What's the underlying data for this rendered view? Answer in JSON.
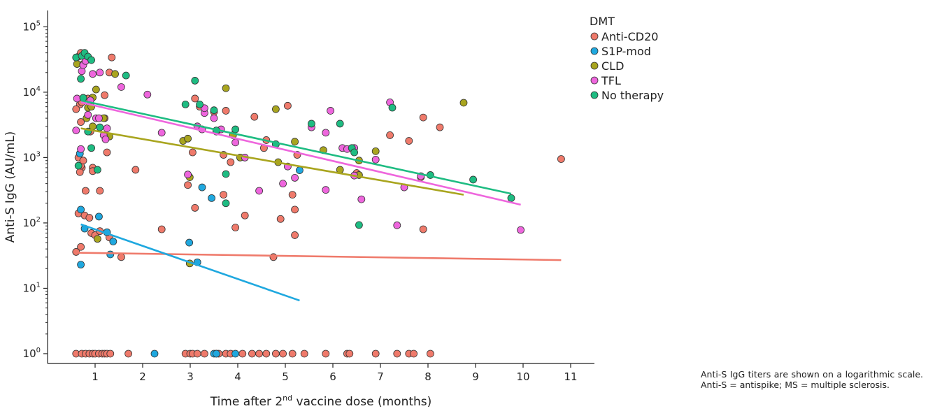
{
  "caption": "Anti-S IgG titers are shown on a logarithmic scale. Anti-S = antispike; MS = multiple sclerosis.",
  "chart_data": {
    "type": "scatter",
    "xlabel_pre": "Time after 2",
    "xlabel_sup": "nd",
    "xlabel_post": " vaccine dose (months)",
    "ylabel": "Anti-S IgG (AU/mL)",
    "y_scale": "log10",
    "xlim": [
      0.0,
      11.5
    ],
    "ylim_exp": [
      -0.15,
      5.25
    ],
    "x_ticks": [
      1,
      2,
      3,
      4,
      5,
      6,
      7,
      8,
      9,
      10,
      11
    ],
    "y_ticks": [
      {
        "exp": 0,
        "base": "10",
        "sup": "0"
      },
      {
        "exp": 1,
        "base": "10",
        "sup": "1"
      },
      {
        "exp": 2,
        "base": "10",
        "sup": "2"
      },
      {
        "exp": 3,
        "base": "10",
        "sup": "3"
      },
      {
        "exp": 4,
        "base": "10",
        "sup": "4"
      },
      {
        "exp": 5,
        "base": "10",
        "sup": "5"
      }
    ],
    "legend": {
      "title": "DMT",
      "placement": "top-right"
    },
    "series": [
      {
        "name": "Anti-CD20",
        "color": "#ef7a6b",
        "fit": {
          "x": [
            0.65,
            10.8
          ],
          "y": [
            35,
            27
          ]
        },
        "points": [
          [
            0.65,
            35000
          ],
          [
            0.7,
            40000
          ],
          [
            0.68,
            6500
          ],
          [
            0.72,
            7000
          ],
          [
            0.6,
            5500
          ],
          [
            0.7,
            3500
          ],
          [
            0.65,
            1000
          ],
          [
            0.72,
            700
          ],
          [
            0.68,
            600
          ],
          [
            0.7,
            750
          ],
          [
            0.75,
            900
          ],
          [
            0.85,
            8000
          ],
          [
            0.9,
            2500
          ],
          [
            0.95,
            700
          ],
          [
            0.95,
            620
          ],
          [
            0.8,
            310
          ],
          [
            1.1,
            310
          ],
          [
            1.2,
            9000
          ],
          [
            1.2,
            4000
          ],
          [
            1.3,
            20000
          ],
          [
            1.35,
            34000
          ],
          [
            1.25,
            1200
          ],
          [
            0.65,
            140
          ],
          [
            0.78,
            130
          ],
          [
            0.88,
            120
          ],
          [
            0.92,
            70
          ],
          [
            1.0,
            65
          ],
          [
            1.1,
            75
          ],
          [
            0.7,
            43
          ],
          [
            0.6,
            36
          ],
          [
            1.3,
            60
          ],
          [
            1.55,
            30
          ],
          [
            1.85,
            650
          ],
          [
            2.4,
            80
          ],
          [
            2.95,
            380
          ],
          [
            3.05,
            1200
          ],
          [
            3.1,
            170
          ],
          [
            3.1,
            8000
          ],
          [
            3.2,
            6000
          ],
          [
            3.5,
            5000
          ],
          [
            3.7,
            270
          ],
          [
            3.7,
            1100
          ],
          [
            3.75,
            5200
          ],
          [
            3.85,
            850
          ],
          [
            3.95,
            85
          ],
          [
            4.15,
            130
          ],
          [
            4.35,
            4200
          ],
          [
            4.55,
            1400
          ],
          [
            4.6,
            1850
          ],
          [
            4.75,
            30
          ],
          [
            4.9,
            115
          ],
          [
            5.05,
            6200
          ],
          [
            5.15,
            270
          ],
          [
            5.2,
            160
          ],
          [
            5.25,
            1100
          ],
          [
            5.2,
            65
          ],
          [
            6.5,
            580
          ],
          [
            7.2,
            2200
          ],
          [
            7.6,
            1800
          ],
          [
            7.85,
            500
          ],
          [
            7.9,
            4100
          ],
          [
            7.9,
            80
          ],
          [
            8.25,
            2900
          ],
          [
            10.8,
            950
          ],
          [
            0.6,
            1
          ],
          [
            0.72,
            1
          ],
          [
            0.8,
            1
          ],
          [
            0.88,
            1
          ],
          [
            0.95,
            1
          ],
          [
            1.0,
            1
          ],
          [
            1.08,
            1
          ],
          [
            1.15,
            1
          ],
          [
            1.2,
            1
          ],
          [
            1.25,
            1
          ],
          [
            1.32,
            1
          ],
          [
            1.7,
            1
          ],
          [
            2.9,
            1
          ],
          [
            3.0,
            1
          ],
          [
            3.05,
            1
          ],
          [
            3.15,
            1
          ],
          [
            3.3,
            1
          ],
          [
            3.55,
            1
          ],
          [
            3.6,
            1
          ],
          [
            3.75,
            1
          ],
          [
            3.85,
            1
          ],
          [
            4.1,
            1
          ],
          [
            4.3,
            1
          ],
          [
            4.45,
            1
          ],
          [
            4.6,
            1
          ],
          [
            4.8,
            1
          ],
          [
            4.95,
            1
          ],
          [
            5.15,
            1
          ],
          [
            5.4,
            1
          ],
          [
            5.85,
            1
          ],
          [
            6.3,
            1
          ],
          [
            6.35,
            1
          ],
          [
            6.9,
            1
          ],
          [
            7.35,
            1
          ],
          [
            7.6,
            1
          ],
          [
            7.7,
            1
          ],
          [
            8.05,
            1
          ]
        ]
      },
      {
        "name": "S1P-mod",
        "color": "#1fa8df",
        "fit": {
          "x": [
            0.7,
            5.3
          ],
          "y": [
            95,
            6.5
          ]
        },
        "points": [
          [
            0.68,
            1150
          ],
          [
            0.7,
            160
          ],
          [
            0.78,
            82
          ],
          [
            1.08,
            125
          ],
          [
            1.25,
            72
          ],
          [
            1.32,
            33
          ],
          [
            1.38,
            52
          ],
          [
            0.7,
            23
          ],
          [
            2.98,
            50
          ],
          [
            3.15,
            25
          ],
          [
            3.25,
            350
          ],
          [
            3.45,
            240
          ],
          [
            5.3,
            640
          ],
          [
            2.25,
            1
          ],
          [
            3.5,
            1
          ],
          [
            3.55,
            1
          ],
          [
            3.95,
            1
          ]
        ]
      },
      {
        "name": "CLD",
        "color": "#a9a51f",
        "fit": {
          "x": [
            0.7,
            8.75
          ],
          "y": [
            2800,
            270
          ]
        },
        "points": [
          [
            0.62,
            27000
          ],
          [
            0.75,
            27000
          ],
          [
            0.85,
            5800
          ],
          [
            0.92,
            6000
          ],
          [
            0.95,
            8300
          ],
          [
            1.02,
            11000
          ],
          [
            0.82,
            4000
          ],
          [
            1.18,
            4000
          ],
          [
            1.3,
            2100
          ],
          [
            1.42,
            19000
          ],
          [
            2.85,
            1800
          ],
          [
            2.95,
            1950
          ],
          [
            2.99,
            500
          ],
          [
            3.75,
            11500
          ],
          [
            3.9,
            2200
          ],
          [
            4.05,
            1000
          ],
          [
            4.8,
            5500
          ],
          [
            4.85,
            850
          ],
          [
            5.2,
            1750
          ],
          [
            5.8,
            1300
          ],
          [
            6.15,
            650
          ],
          [
            6.55,
            540
          ],
          [
            6.55,
            900
          ],
          [
            6.9,
            1250
          ],
          [
            8.75,
            6900
          ],
          [
            0.95,
            3000
          ],
          [
            1.05,
            57
          ],
          [
            2.99,
            24
          ]
        ]
      },
      {
        "name": "TFL",
        "color": "#ee66dd",
        "fit": {
          "x": [
            0.7,
            9.95
          ],
          "y": [
            7000,
            190
          ]
        },
        "points": [
          [
            0.6,
            2600
          ],
          [
            0.62,
            8000
          ],
          [
            0.7,
            1350
          ],
          [
            0.72,
            21000
          ],
          [
            0.75,
            26000
          ],
          [
            0.8,
            30000
          ],
          [
            0.85,
            4500
          ],
          [
            0.9,
            7500
          ],
          [
            0.95,
            19000
          ],
          [
            1.02,
            4000
          ],
          [
            1.08,
            4000
          ],
          [
            1.1,
            20000
          ],
          [
            1.18,
            2200
          ],
          [
            1.22,
            1900
          ],
          [
            1.25,
            2800
          ],
          [
            1.55,
            12000
          ],
          [
            2.1,
            9200
          ],
          [
            2.4,
            2400
          ],
          [
            2.95,
            550
          ],
          [
            3.15,
            3000
          ],
          [
            3.25,
            2700
          ],
          [
            3.3,
            4800
          ],
          [
            3.3,
            5700
          ],
          [
            3.5,
            4000
          ],
          [
            3.55,
            2500
          ],
          [
            3.65,
            2700
          ],
          [
            3.95,
            1700
          ],
          [
            4.15,
            1000
          ],
          [
            4.45,
            310
          ],
          [
            4.95,
            400
          ],
          [
            5.05,
            730
          ],
          [
            5.2,
            490
          ],
          [
            5.55,
            2900
          ],
          [
            5.85,
            320
          ],
          [
            5.85,
            2400
          ],
          [
            5.95,
            5200
          ],
          [
            6.2,
            1400
          ],
          [
            6.3,
            1350
          ],
          [
            6.45,
            530
          ],
          [
            6.45,
            1400
          ],
          [
            6.6,
            230
          ],
          [
            6.9,
            930
          ],
          [
            7.2,
            7000
          ],
          [
            7.35,
            92
          ],
          [
            7.5,
            350
          ],
          [
            7.85,
            520
          ],
          [
            9.95,
            78
          ]
        ]
      },
      {
        "name": "No therapy",
        "color": "#1ebc82",
        "fit": {
          "x": [
            0.7,
            9.75
          ],
          "y": [
            7500,
            280
          ]
        },
        "points": [
          [
            0.6,
            34000
          ],
          [
            0.7,
            16000
          ],
          [
            0.72,
            36000
          ],
          [
            0.78,
            40000
          ],
          [
            0.85,
            35000
          ],
          [
            0.92,
            31000
          ],
          [
            0.75,
            8200
          ],
          [
            0.85,
            2500
          ],
          [
            0.92,
            1400
          ],
          [
            1.05,
            650
          ],
          [
            1.1,
            2900
          ],
          [
            1.65,
            18000
          ],
          [
            2.9,
            6500
          ],
          [
            3.1,
            15000
          ],
          [
            3.2,
            6500
          ],
          [
            3.5,
            5300
          ],
          [
            3.55,
            2600
          ],
          [
            3.75,
            560
          ],
          [
            3.75,
            200
          ],
          [
            3.95,
            2700
          ],
          [
            4.8,
            1600
          ],
          [
            5.55,
            3300
          ],
          [
            6.15,
            3300
          ],
          [
            6.4,
            1400
          ],
          [
            6.45,
            1200
          ],
          [
            6.55,
            93
          ],
          [
            7.25,
            5800
          ],
          [
            8.05,
            540
          ],
          [
            8.95,
            460
          ],
          [
            9.75,
            240
          ],
          [
            0.65,
            750
          ]
        ]
      }
    ]
  }
}
